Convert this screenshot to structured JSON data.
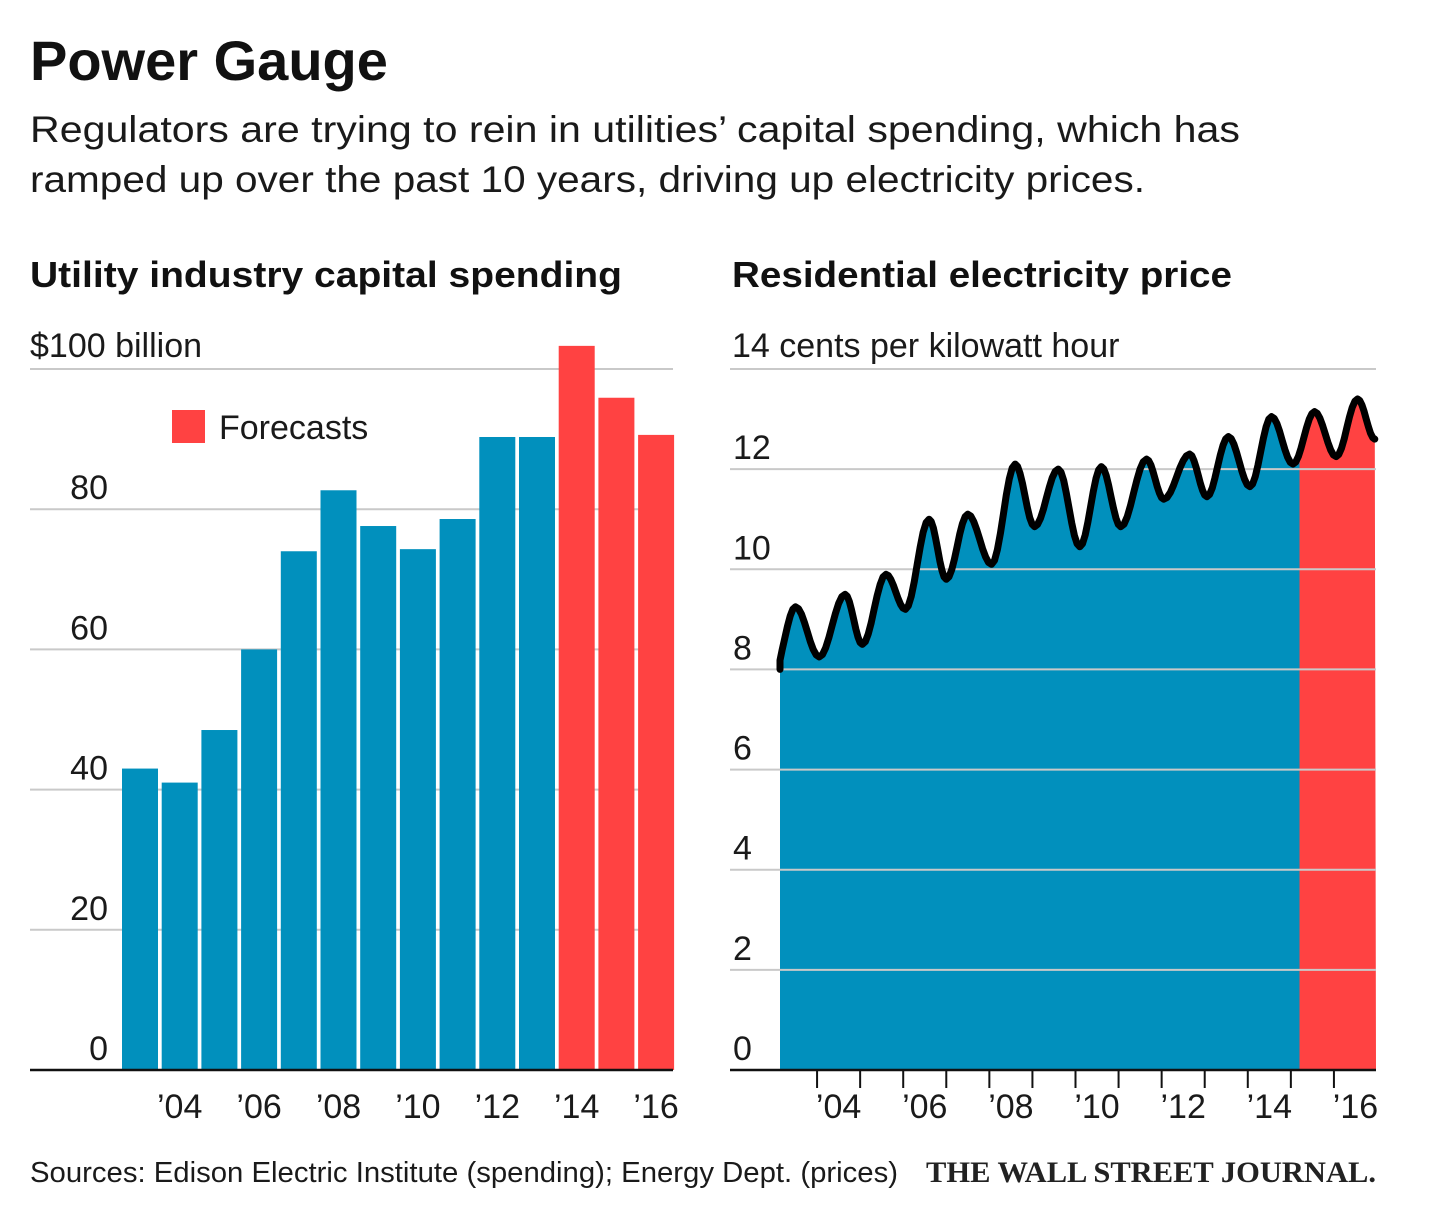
{
  "title": "Power Gauge",
  "subtitle_lines": [
    "Regulators are trying to rein in utilities’ capital spending, which has",
    "ramped up over the past 10 years, driving up electricity prices."
  ],
  "footer": {
    "sources": "Sources: Edison Electric Institute (spending); Energy Dept. (prices)",
    "publisher": "THE WALL STREET JOURNAL."
  },
  "colors": {
    "actual": "#0190bd",
    "forecast": "#ff4242",
    "line": "#000000",
    "grid": "#c9c9c9"
  },
  "chart_data": [
    {
      "type": "bar",
      "title": "Utility industry capital spending",
      "ylabel": "$100 billion",
      "unit_label": "$100 billion",
      "categories": [
        "2003",
        "2004",
        "2005",
        "2006",
        "2007",
        "2008",
        "2009",
        "2010",
        "2011",
        "2012",
        "2013",
        "2014",
        "2015",
        "2016"
      ],
      "values": [
        43,
        41,
        48.5,
        60,
        74,
        82.7,
        77.6,
        74.3,
        78.6,
        90.3,
        90.3,
        103.3,
        95.9,
        90.6
      ],
      "forecast": [
        false,
        false,
        false,
        false,
        false,
        false,
        false,
        false,
        false,
        false,
        false,
        true,
        true,
        true
      ],
      "legend": {
        "label": "Forecasts",
        "placement": "top-left"
      },
      "ylim": [
        0,
        100
      ],
      "yticks": [
        0,
        20,
        40,
        60,
        80
      ],
      "xtick_labels": [
        "’04",
        "’06",
        "’08",
        "’10",
        "’12",
        "’14",
        "’16"
      ],
      "xtick_years": [
        2004,
        2006,
        2008,
        2010,
        2012,
        2014,
        2016
      ],
      "grid": true
    },
    {
      "type": "area",
      "title": "Residential electricity price",
      "unit_label": "14 cents per kilowatt hour",
      "ylim": [
        0,
        14
      ],
      "xlim": [
        2003,
        2017
      ],
      "yticks": [
        0,
        2,
        4,
        6,
        8,
        10,
        12
      ],
      "xtick_labels": [
        "’04",
        "’06",
        "’08",
        "’10",
        "’12",
        "’14",
        "’16"
      ],
      "xtick_years": [
        2004,
        2006,
        2008,
        2010,
        2012,
        2014,
        2016
      ],
      "forecast_start": 2015.2,
      "grid": true,
      "series": [
        {
          "name": "Residential electricity price (cents/kWh)",
          "x": [
            2003.0,
            2003.5,
            2004.05,
            2004.65,
            2005.05,
            2005.6,
            2006.05,
            2006.6,
            2007.0,
            2007.5,
            2008.05,
            2008.6,
            2009.05,
            2009.6,
            2010.1,
            2010.6,
            2011.05,
            2011.65,
            2012.05,
            2012.65,
            2013.05,
            2013.55,
            2014.05,
            2014.55,
            2015.05,
            2015.55,
            2016.05,
            2016.55,
            2016.95
          ],
          "y": [
            8.0,
            9.25,
            8.25,
            9.5,
            8.5,
            9.9,
            9.2,
            11.0,
            9.8,
            11.1,
            10.1,
            12.1,
            10.85,
            12.0,
            10.45,
            12.05,
            10.85,
            12.2,
            11.4,
            12.3,
            11.45,
            12.65,
            11.65,
            13.05,
            12.1,
            13.15,
            12.25,
            13.4,
            12.6
          ]
        }
      ]
    }
  ]
}
